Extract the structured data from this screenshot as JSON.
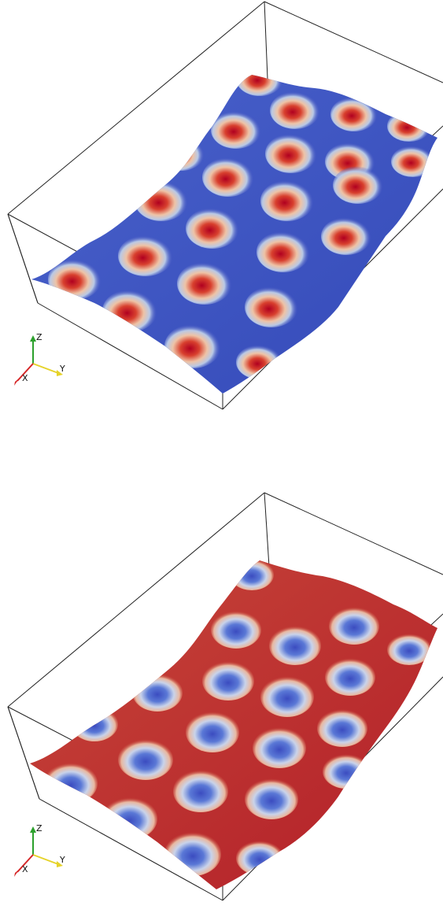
{
  "panels": [
    {
      "id": "top",
      "description_name": "surface-spots",
      "spot_color": "#c8102e",
      "base_color": "#3b4cc0",
      "mid_color": "#dddcdc",
      "axes": {
        "z": "Z",
        "x": "X",
        "y": "Y"
      }
    },
    {
      "id": "bottom",
      "description_name": "surface-holes",
      "spot_color": "#3b4cc0",
      "base_color": "#b40426",
      "mid_color": "#dddcdc",
      "axes": {
        "z": "Z",
        "x": "X",
        "y": "Y"
      }
    }
  ],
  "axis_colors": {
    "x": "#d62728",
    "y": "#e6d32a",
    "z": "#2ca02c"
  }
}
